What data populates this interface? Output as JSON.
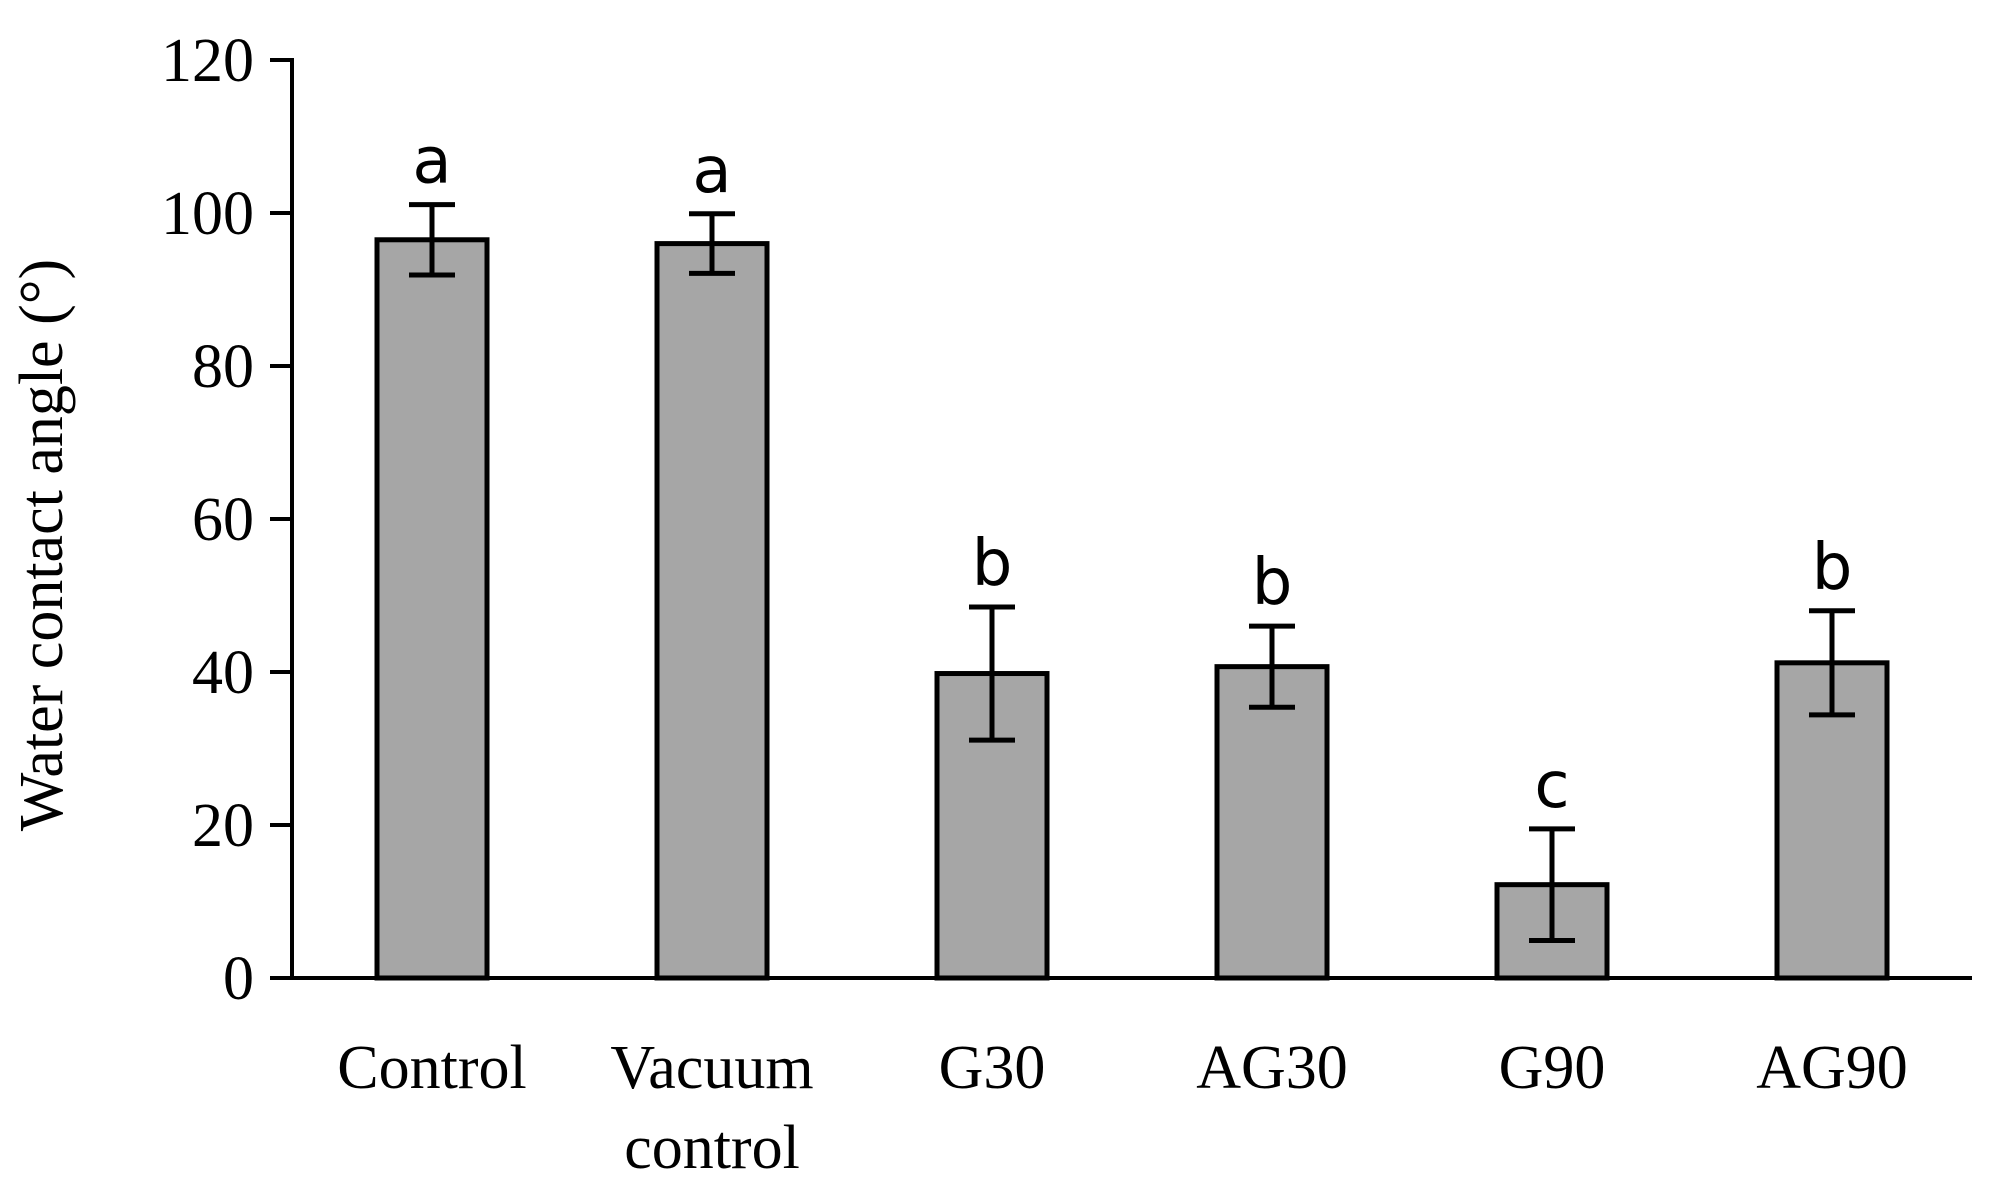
{
  "chart_data": {
    "type": "bar",
    "title": "",
    "xlabel": "",
    "ylabel": "Water contact angle (°)",
    "ylim": [
      0,
      120
    ],
    "yticks": [
      0,
      20,
      40,
      60,
      80,
      100,
      120
    ],
    "grid": false,
    "bar_color": "#a6a6a6",
    "categories": [
      [
        "Control"
      ],
      [
        "Vacuum",
        "control"
      ],
      [
        "G30"
      ],
      [
        "AG30"
      ],
      [
        "G90"
      ],
      [
        "AG90"
      ]
    ],
    "values": [
      96.5,
      96.0,
      39.8,
      40.7,
      12.2,
      41.2
    ],
    "errors": [
      4.6,
      3.9,
      8.7,
      5.3,
      7.3,
      6.8
    ],
    "significance_letters": [
      "a",
      "a",
      "b",
      "b",
      "c",
      "b"
    ]
  }
}
